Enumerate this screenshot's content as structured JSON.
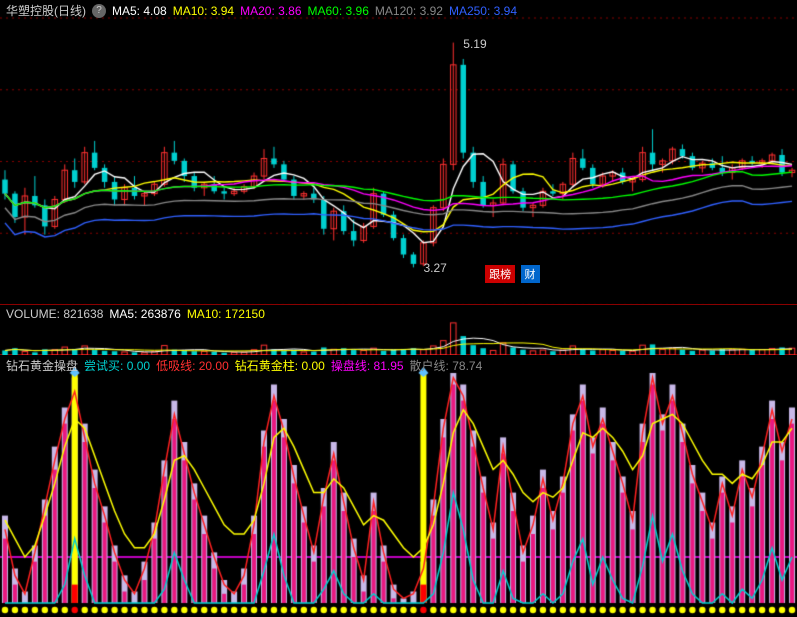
{
  "colors": {
    "bg": "#000000",
    "grid": "#8b0000",
    "candleUp": "#ff3030",
    "candleDown": "#00d0d0",
    "ma5": "#ffffff",
    "ma10": "#ffff00",
    "ma20": "#ff00ff",
    "ma60": "#00ff00",
    "ma120": "#888888",
    "ma250": "#3060ff",
    "volUp": "#ff3030",
    "volDown": "#00d0d0",
    "indBarA": "#c8b8e8",
    "indBarB": "#e81880",
    "indLineR": "#ff2020",
    "indLineY": "#ffff00",
    "indLineC": "#00d0d0",
    "indHoriz": "#ff00ff",
    "indSpecial": "#ffff00",
    "dotY": "#ffff00",
    "dotR": "#ff0000"
  },
  "panelHeights": {
    "main": 305,
    "vol": 50,
    "ind": 260
  },
  "nBars": 80,
  "price": {
    "title": "华塑控股(日线)",
    "help": "?",
    "ma": {
      "ma5": {
        "label": "MA5:",
        "value": "4.08"
      },
      "ma10": {
        "label": "MA10:",
        "value": "3.94"
      },
      "ma20": {
        "label": "MA20:",
        "value": "3.86"
      },
      "ma60": {
        "label": "MA60:",
        "value": "3.96"
      },
      "ma120": {
        "label": "MA120:",
        "value": "3.92"
      },
      "ma250": {
        "label": "MA250:",
        "value": "3.94"
      }
    },
    "ylim": [
      3.0,
      5.4
    ],
    "hi": {
      "value": "5.19",
      "barIndex": 45
    },
    "lo": {
      "value": "3.27",
      "barIndex": 41
    },
    "badgeRed": "跟榜",
    "badgeBlue": "财",
    "candles": [
      {
        "o": 4.02,
        "h": 4.1,
        "l": 3.85,
        "c": 3.9
      },
      {
        "o": 3.9,
        "h": 3.92,
        "l": 3.65,
        "c": 3.7
      },
      {
        "o": 3.7,
        "h": 3.95,
        "l": 3.55,
        "c": 3.88
      },
      {
        "o": 3.88,
        "h": 4.05,
        "l": 3.78,
        "c": 3.8
      },
      {
        "o": 3.8,
        "h": 3.85,
        "l": 3.55,
        "c": 3.62
      },
      {
        "o": 3.62,
        "h": 3.88,
        "l": 3.6,
        "c": 3.85
      },
      {
        "o": 3.85,
        "h": 4.15,
        "l": 3.82,
        "c": 4.1
      },
      {
        "o": 4.1,
        "h": 4.2,
        "l": 3.95,
        "c": 4.0
      },
      {
        "o": 4.0,
        "h": 4.3,
        "l": 3.98,
        "c": 4.25
      },
      {
        "o": 4.25,
        "h": 4.35,
        "l": 4.1,
        "c": 4.12
      },
      {
        "o": 4.12,
        "h": 4.15,
        "l": 3.95,
        "c": 4.0
      },
      {
        "o": 4.0,
        "h": 4.05,
        "l": 3.8,
        "c": 3.85
      },
      {
        "o": 3.85,
        "h": 3.98,
        "l": 3.8,
        "c": 3.95
      },
      {
        "o": 3.95,
        "h": 4.05,
        "l": 3.85,
        "c": 3.88
      },
      {
        "o": 3.88,
        "h": 3.92,
        "l": 3.8,
        "c": 3.9
      },
      {
        "o": 3.9,
        "h": 4.0,
        "l": 3.88,
        "c": 3.98
      },
      {
        "o": 3.98,
        "h": 4.3,
        "l": 3.96,
        "c": 4.25
      },
      {
        "o": 4.25,
        "h": 4.35,
        "l": 4.15,
        "c": 4.18
      },
      {
        "o": 4.18,
        "h": 4.2,
        "l": 4.0,
        "c": 4.05
      },
      {
        "o": 4.05,
        "h": 4.08,
        "l": 3.92,
        "c": 3.95
      },
      {
        "o": 3.95,
        "h": 4.0,
        "l": 3.88,
        "c": 3.98
      },
      {
        "o": 3.98,
        "h": 4.05,
        "l": 3.9,
        "c": 3.92
      },
      {
        "o": 3.92,
        "h": 3.95,
        "l": 3.85,
        "c": 3.9
      },
      {
        "o": 3.9,
        "h": 3.95,
        "l": 3.88,
        "c": 3.92
      },
      {
        "o": 3.92,
        "h": 3.98,
        "l": 3.9,
        "c": 3.96
      },
      {
        "o": 3.96,
        "h": 4.08,
        "l": 3.94,
        "c": 4.05
      },
      {
        "o": 4.05,
        "h": 4.28,
        "l": 4.02,
        "c": 4.2
      },
      {
        "o": 4.2,
        "h": 4.3,
        "l": 4.12,
        "c": 4.15
      },
      {
        "o": 4.15,
        "h": 4.18,
        "l": 4.0,
        "c": 4.02
      },
      {
        "o": 4.02,
        "h": 4.05,
        "l": 3.85,
        "c": 3.88
      },
      {
        "o": 3.88,
        "h": 3.92,
        "l": 3.85,
        "c": 3.9
      },
      {
        "o": 3.9,
        "h": 3.95,
        "l": 3.82,
        "c": 3.85
      },
      {
        "o": 3.85,
        "h": 3.88,
        "l": 3.55,
        "c": 3.6
      },
      {
        "o": 3.6,
        "h": 3.78,
        "l": 3.5,
        "c": 3.75
      },
      {
        "o": 3.75,
        "h": 3.8,
        "l": 3.55,
        "c": 3.58
      },
      {
        "o": 3.58,
        "h": 3.68,
        "l": 3.45,
        "c": 3.5
      },
      {
        "o": 3.5,
        "h": 3.65,
        "l": 3.48,
        "c": 3.62
      },
      {
        "o": 3.62,
        "h": 3.95,
        "l": 3.6,
        "c": 3.9
      },
      {
        "o": 3.9,
        "h": 3.92,
        "l": 3.7,
        "c": 3.72
      },
      {
        "o": 3.72,
        "h": 3.75,
        "l": 3.5,
        "c": 3.52
      },
      {
        "o": 3.52,
        "h": 3.55,
        "l": 3.35,
        "c": 3.38
      },
      {
        "o": 3.38,
        "h": 3.4,
        "l": 3.27,
        "c": 3.3
      },
      {
        "o": 3.3,
        "h": 3.5,
        "l": 3.28,
        "c": 3.48
      },
      {
        "o": 3.48,
        "h": 3.8,
        "l": 3.45,
        "c": 3.78
      },
      {
        "o": 3.78,
        "h": 4.2,
        "l": 3.75,
        "c": 4.15
      },
      {
        "o": 4.15,
        "h": 5.19,
        "l": 4.1,
        "c": 5.0
      },
      {
        "o": 5.0,
        "h": 5.05,
        "l": 4.2,
        "c": 4.25
      },
      {
        "o": 4.25,
        "h": 4.3,
        "l": 3.95,
        "c": 4.0
      },
      {
        "o": 4.0,
        "h": 4.05,
        "l": 3.78,
        "c": 3.8
      },
      {
        "o": 3.8,
        "h": 3.85,
        "l": 3.7,
        "c": 3.82
      },
      {
        "o": 3.82,
        "h": 4.2,
        "l": 3.8,
        "c": 4.15
      },
      {
        "o": 4.15,
        "h": 4.18,
        "l": 3.9,
        "c": 3.92
      },
      {
        "o": 3.92,
        "h": 3.95,
        "l": 3.75,
        "c": 3.78
      },
      {
        "o": 3.78,
        "h": 3.82,
        "l": 3.7,
        "c": 3.8
      },
      {
        "o": 3.8,
        "h": 3.95,
        "l": 3.78,
        "c": 3.92
      },
      {
        "o": 3.92,
        "h": 3.98,
        "l": 3.88,
        "c": 3.9
      },
      {
        "o": 3.9,
        "h": 4.0,
        "l": 3.85,
        "c": 3.98
      },
      {
        "o": 3.98,
        "h": 4.25,
        "l": 3.95,
        "c": 4.2
      },
      {
        "o": 4.2,
        "h": 4.28,
        "l": 4.1,
        "c": 4.12
      },
      {
        "o": 4.12,
        "h": 4.15,
        "l": 3.95,
        "c": 3.98
      },
      {
        "o": 3.98,
        "h": 4.08,
        "l": 3.95,
        "c": 4.05
      },
      {
        "o": 4.05,
        "h": 4.1,
        "l": 4.0,
        "c": 4.08
      },
      {
        "o": 4.08,
        "h": 4.12,
        "l": 3.98,
        "c": 4.0
      },
      {
        "o": 4.0,
        "h": 4.05,
        "l": 3.92,
        "c": 4.02
      },
      {
        "o": 4.02,
        "h": 4.3,
        "l": 4.0,
        "c": 4.25
      },
      {
        "o": 4.25,
        "h": 4.45,
        "l": 4.1,
        "c": 4.15
      },
      {
        "o": 4.15,
        "h": 4.2,
        "l": 4.08,
        "c": 4.18
      },
      {
        "o": 4.18,
        "h": 4.3,
        "l": 4.15,
        "c": 4.28
      },
      {
        "o": 4.28,
        "h": 4.32,
        "l": 4.2,
        "c": 4.22
      },
      {
        "o": 4.22,
        "h": 4.25,
        "l": 4.1,
        "c": 4.12
      },
      {
        "o": 4.12,
        "h": 4.18,
        "l": 4.08,
        "c": 4.16
      },
      {
        "o": 4.16,
        "h": 4.2,
        "l": 4.1,
        "c": 4.12
      },
      {
        "o": 4.12,
        "h": 4.22,
        "l": 4.05,
        "c": 4.08
      },
      {
        "o": 4.08,
        "h": 4.15,
        "l": 4.02,
        "c": 4.12
      },
      {
        "o": 4.12,
        "h": 4.2,
        "l": 4.1,
        "c": 4.18
      },
      {
        "o": 4.18,
        "h": 4.22,
        "l": 4.14,
        "c": 4.16
      },
      {
        "o": 4.16,
        "h": 4.2,
        "l": 4.12,
        "c": 4.18
      },
      {
        "o": 4.18,
        "h": 4.25,
        "l": 4.15,
        "c": 4.23
      },
      {
        "o": 4.23,
        "h": 4.28,
        "l": 4.05,
        "c": 4.08
      },
      {
        "o": 4.08,
        "h": 4.12,
        "l": 4.04,
        "c": 4.1
      }
    ]
  },
  "volume": {
    "title": "VOLUME:",
    "value": "821638",
    "ma5": {
      "label": "MA5:",
      "value": "263876"
    },
    "ma10": {
      "label": "MA10:",
      "value": "172150"
    },
    "ylim": [
      0,
      900000
    ],
    "bars": [
      120000,
      180000,
      90000,
      70000,
      150000,
      140000,
      210000,
      160000,
      240000,
      130000,
      110000,
      100000,
      80000,
      70000,
      60000,
      90000,
      250000,
      140000,
      120000,
      100000,
      95000,
      85000,
      60000,
      70000,
      75000,
      140000,
      260000,
      150000,
      110000,
      140000,
      80000,
      90000,
      200000,
      150000,
      180000,
      130000,
      120000,
      180000,
      110000,
      140000,
      160000,
      180000,
      140000,
      240000,
      380000,
      850000,
      500000,
      260000,
      180000,
      120000,
      320000,
      200000,
      140000,
      110000,
      130000,
      100000,
      130000,
      240000,
      160000,
      120000,
      140000,
      120000,
      110000,
      100000,
      260000,
      280000,
      150000,
      180000,
      140000,
      110000,
      130000,
      120000,
      160000,
      140000,
      150000,
      130000,
      140000,
      170000,
      200000,
      180000
    ]
  },
  "indicator": {
    "title": "钻石黄金操盘",
    "items": {
      "a": {
        "label": "尝试买:",
        "value": "0.00",
        "color": "#00d0d0"
      },
      "b": {
        "label": "低吸线:",
        "value": "20.00",
        "color": "#ff3030"
      },
      "c": {
        "label": "钻石黄金柱:",
        "value": "0.00",
        "color": "#ffff00"
      },
      "d": {
        "label": "操盘线:",
        "value": "81.95",
        "color": "#ff00ff"
      },
      "e": {
        "label": "散户线:",
        "value": "78.74",
        "color": "#888888"
      }
    },
    "ylim": [
      0,
      100
    ],
    "horizLine": 20,
    "specialBars": [
      7,
      42
    ],
    "stepA": [
      38,
      15,
      5,
      25,
      45,
      68,
      85,
      98,
      78,
      58,
      42,
      25,
      12,
      5,
      18,
      35,
      62,
      88,
      70,
      52,
      38,
      22,
      10,
      5,
      15,
      38,
      75,
      95,
      80,
      60,
      42,
      25,
      50,
      70,
      48,
      28,
      12,
      48,
      25,
      8,
      2,
      5,
      18,
      45,
      80,
      100,
      95,
      75,
      55,
      35,
      72,
      48,
      25,
      38,
      58,
      40,
      55,
      82,
      95,
      72,
      85,
      70,
      55,
      40,
      78,
      100,
      82,
      95,
      78,
      60,
      48,
      35,
      55,
      42,
      62,
      50,
      68,
      88,
      70,
      85
    ],
    "stepB": [
      28,
      8,
      0,
      18,
      38,
      58,
      78,
      90,
      70,
      50,
      35,
      18,
      5,
      0,
      10,
      28,
      55,
      80,
      62,
      45,
      30,
      15,
      4,
      0,
      8,
      30,
      68,
      88,
      72,
      52,
      35,
      18,
      42,
      62,
      40,
      20,
      5,
      40,
      18,
      2,
      0,
      0,
      10,
      38,
      72,
      95,
      88,
      68,
      48,
      28,
      65,
      40,
      18,
      30,
      50,
      32,
      48,
      75,
      88,
      65,
      78,
      62,
      48,
      32,
      70,
      95,
      75,
      88,
      70,
      52,
      40,
      28,
      48,
      35,
      55,
      42,
      60,
      80,
      62,
      78
    ],
    "lineR": [
      32,
      12,
      4,
      22,
      42,
      62,
      80,
      92,
      72,
      52,
      38,
      22,
      10,
      4,
      15,
      32,
      58,
      82,
      65,
      48,
      34,
      20,
      8,
      4,
      12,
      34,
      70,
      90,
      75,
      55,
      38,
      22,
      46,
      65,
      44,
      24,
      10,
      44,
      22,
      6,
      2,
      4,
      15,
      42,
      76,
      98,
      90,
      70,
      50,
      32,
      68,
      44,
      22,
      34,
      54,
      36,
      52,
      78,
      90,
      68,
      80,
      66,
      52,
      36,
      74,
      98,
      78,
      90,
      74,
      56,
      44,
      32,
      52,
      38,
      58,
      46,
      64,
      84,
      66,
      80
    ],
    "lineY": [
      36,
      28,
      20,
      25,
      38,
      52,
      68,
      80,
      76,
      64,
      52,
      40,
      30,
      24,
      24,
      30,
      45,
      62,
      64,
      58,
      50,
      42,
      34,
      30,
      30,
      36,
      52,
      72,
      76,
      68,
      58,
      48,
      48,
      54,
      50,
      42,
      34,
      38,
      36,
      30,
      24,
      20,
      24,
      34,
      52,
      74,
      84,
      78,
      68,
      58,
      62,
      56,
      48,
      44,
      48,
      46,
      50,
      62,
      74,
      72,
      76,
      72,
      66,
      58,
      64,
      78,
      80,
      82,
      78,
      70,
      62,
      56,
      56,
      52,
      56,
      54,
      60,
      70,
      70,
      76
    ],
    "lineC": [
      0,
      0,
      0,
      0,
      0,
      0,
      8,
      28,
      12,
      0,
      0,
      0,
      0,
      0,
      0,
      0,
      6,
      22,
      10,
      0,
      0,
      0,
      0,
      0,
      0,
      0,
      14,
      30,
      12,
      0,
      0,
      0,
      6,
      14,
      4,
      0,
      0,
      4,
      0,
      0,
      0,
      0,
      0,
      4,
      22,
      48,
      32,
      10,
      0,
      0,
      14,
      2,
      0,
      0,
      4,
      0,
      4,
      18,
      28,
      8,
      20,
      10,
      2,
      0,
      16,
      38,
      18,
      30,
      14,
      4,
      0,
      0,
      4,
      0,
      6,
      2,
      10,
      24,
      10,
      20
    ]
  }
}
